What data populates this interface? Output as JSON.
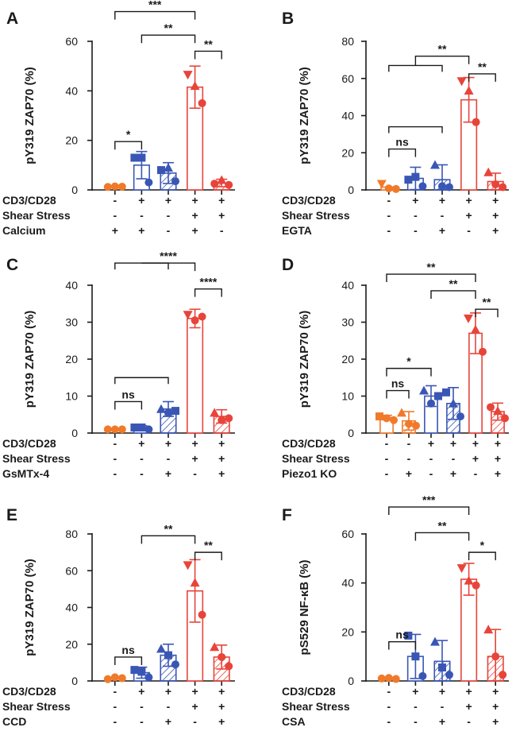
{
  "colors": {
    "control": "#f07a2a",
    "blue": "#3a56b5",
    "red": "#e8443a",
    "axis": "#1a1a1a"
  },
  "chart_data": [
    {
      "panel": "A",
      "type": "bar",
      "ylabel": "pY319 ZAP70 (%)",
      "ylim": [
        0,
        60
      ],
      "yticks": [
        0,
        20,
        40,
        60
      ],
      "rows": [
        {
          "label": "CD3/CD28",
          "symbols": [
            "-",
            "+",
            "+",
            "+",
            "+"
          ]
        },
        {
          "label": "Shear Stress",
          "symbols": [
            "-",
            "-",
            "-",
            "+",
            "+"
          ]
        },
        {
          "label": "Calcium",
          "symbols": [
            "+",
            "+",
            "-",
            "+",
            "-"
          ]
        }
      ],
      "bars": [
        {
          "color": "control",
          "fill": "none",
          "mean": 1.3,
          "sd": 0,
          "points": [
            {
              "y": 1.2,
              "m": "o"
            },
            {
              "y": 1.4,
              "m": "o"
            },
            {
              "y": 1.3,
              "m": "o"
            }
          ]
        },
        {
          "color": "blue",
          "fill": "open",
          "mean": 10,
          "sd": 5.5,
          "points": [
            {
              "y": 13,
              "m": "s"
            },
            {
              "y": 13,
              "m": "s"
            },
            {
              "y": 3,
              "m": "o"
            }
          ]
        },
        {
          "color": "blue",
          "fill": "hatch",
          "mean": 6.8,
          "sd": 4.2,
          "points": [
            {
              "y": 8,
              "m": "s"
            },
            {
              "y": 9,
              "m": "^"
            },
            {
              "y": 3.5,
              "m": "o"
            }
          ]
        },
        {
          "color": "red",
          "fill": "open",
          "mean": 41.5,
          "sd": 8.5,
          "points": [
            {
              "y": 46.5,
              "m": "v"
            },
            {
              "y": 42,
              "m": "^"
            },
            {
              "y": 35,
              "m": "o"
            }
          ]
        },
        {
          "color": "red",
          "fill": "hatch",
          "mean": 2.8,
          "sd": 1.5,
          "points": [
            {
              "y": 2.5,
              "m": "o"
            },
            {
              "y": 4,
              "m": "^"
            },
            {
              "y": 2,
              "m": "o"
            }
          ]
        }
      ],
      "sig": [
        {
          "a": 0,
          "b": 3,
          "y": 72,
          "text": "***"
        },
        {
          "a": 1,
          "b": 3,
          "y": 62.5,
          "text": "**"
        },
        {
          "a": 3,
          "b": 4,
          "y": 56,
          "text": "**"
        },
        {
          "a": 0,
          "b": 1,
          "y": 19.5,
          "text": "*"
        }
      ]
    },
    {
      "panel": "B",
      "type": "bar",
      "ylabel": "pY319 ZAP70 (%)",
      "ylim": [
        0,
        80
      ],
      "yticks": [
        0,
        20,
        40,
        60,
        80
      ],
      "rows": [
        {
          "label": "CD3/CD28",
          "symbols": [
            "-",
            "+",
            "+",
            "+",
            "+"
          ]
        },
        {
          "label": "Shear Stress",
          "symbols": [
            "-",
            "-",
            "-",
            "+",
            "+"
          ]
        },
        {
          "label": "EGTA",
          "symbols": [
            "-",
            "-",
            "+",
            "-",
            "+"
          ]
        }
      ],
      "bars": [
        {
          "color": "control",
          "fill": "open",
          "mean": 1.5,
          "sd": 0,
          "points": [
            {
              "y": 3.2,
              "m": "v"
            },
            {
              "y": 0.8,
              "m": "o"
            },
            {
              "y": 0.5,
              "m": "o"
            }
          ]
        },
        {
          "color": "blue",
          "fill": "open",
          "mean": 6.2,
          "sd": 6,
          "points": [
            {
              "y": 5.5,
              "m": "s"
            },
            {
              "y": 7,
              "m": "s"
            },
            {
              "y": 2,
              "m": "o"
            }
          ]
        },
        {
          "color": "blue",
          "fill": "hatch",
          "mean": 5.5,
          "sd": 8,
          "points": [
            {
              "y": 13.5,
              "m": "^"
            },
            {
              "y": 2,
              "m": "o"
            },
            {
              "y": 1.5,
              "m": "o"
            }
          ]
        },
        {
          "color": "red",
          "fill": "open",
          "mean": 48.5,
          "sd": 12,
          "points": [
            {
              "y": 58.5,
              "m": "v"
            },
            {
              "y": 53.5,
              "m": "^"
            },
            {
              "y": 36.5,
              "m": "o"
            }
          ]
        },
        {
          "color": "red",
          "fill": "hatch",
          "mean": 4.5,
          "sd": 4.5,
          "points": [
            {
              "y": 9.5,
              "m": "^"
            },
            {
              "y": 3,
              "m": "o"
            },
            {
              "y": 1.5,
              "m": "o"
            }
          ]
        }
      ],
      "sig": [
        {
          "a": 1,
          "b": 3,
          "y": 72,
          "text": "**",
          "groupBracket": [
            0,
            2
          ],
          "gy": 67
        },
        {
          "a": 3,
          "b": 4,
          "y": 62.5,
          "text": "**"
        },
        {
          "a": 0,
          "b": 1,
          "y": 27,
          "text": "",
          "groupBracket": [
            0,
            2
          ],
          "gy": 34
        },
        {
          "a": 0,
          "b": 1,
          "y": 22,
          "text": "ns"
        }
      ]
    },
    {
      "panel": "C",
      "type": "bar",
      "ylabel": "pY319 ZAP70 (%)",
      "ylim": [
        0,
        40
      ],
      "yticks": [
        0,
        10,
        20,
        30,
        40
      ],
      "rows": [
        {
          "label": "CD3/CD28",
          "symbols": [
            "-",
            "+",
            "+",
            "+",
            "+"
          ]
        },
        {
          "label": "Shear Stress",
          "symbols": [
            "-",
            "-",
            "-",
            "+",
            "+"
          ]
        },
        {
          "label": "GsMTx-4",
          "symbols": [
            "-",
            "-",
            "+",
            "-",
            "+"
          ]
        }
      ],
      "bars": [
        {
          "color": "control",
          "fill": "none",
          "mean": 1,
          "sd": 0,
          "points": [
            {
              "y": 1,
              "m": "o"
            },
            {
              "y": 1,
              "m": "o"
            },
            {
              "y": 1,
              "m": "o"
            }
          ]
        },
        {
          "color": "blue",
          "fill": "open",
          "mean": 1.5,
          "sd": 0.5,
          "points": [
            {
              "y": 1.5,
              "m": "s"
            },
            {
              "y": 1.5,
              "m": "s"
            },
            {
              "y": 1,
              "m": "o"
            }
          ]
        },
        {
          "color": "blue",
          "fill": "hatch",
          "mean": 6.5,
          "sd": 2,
          "points": [
            {
              "y": 6.5,
              "m": "^"
            },
            {
              "y": 5.5,
              "m": "o"
            },
            {
              "y": 6,
              "m": "s"
            }
          ]
        },
        {
          "color": "red",
          "fill": "open",
          "mean": 31,
          "sd": 2.5,
          "points": [
            {
              "y": 32,
              "m": "v"
            },
            {
              "y": 30.5,
              "m": "o"
            },
            {
              "y": 31.5,
              "m": "o"
            }
          ]
        },
        {
          "color": "red",
          "fill": "hatch",
          "mean": 4.5,
          "sd": 1.8,
          "points": [
            {
              "y": 5.5,
              "m": "^"
            },
            {
              "y": 3.5,
              "m": "o"
            },
            {
              "y": 4,
              "m": "o"
            }
          ]
        }
      ],
      "sig": [
        {
          "a": 1,
          "b": 3,
          "y": 46,
          "text": "****",
          "groupBracket": [
            0,
            2
          ],
          "gy": 46
        },
        {
          "a": 3,
          "b": 4,
          "y": 39,
          "text": "****"
        },
        {
          "a": 0,
          "b": 1,
          "y": 15,
          "text": "",
          "groupBracket": [
            0,
            2
          ],
          "gy": 15
        },
        {
          "a": 0,
          "b": 1,
          "y": 8.5,
          "text": "ns"
        }
      ]
    },
    {
      "panel": "D",
      "type": "bar",
      "ylabel": "pY319 ZAP70 (%)",
      "ylim": [
        0,
        40
      ],
      "yticks": [
        0,
        10,
        20,
        30,
        40
      ],
      "rows": [
        {
          "label": "CD3/CD28",
          "symbols": [
            "-",
            "-",
            "+",
            "+",
            "+",
            "+"
          ]
        },
        {
          "label": "Shear Stress",
          "symbols": [
            "-",
            "-",
            "-",
            "-",
            "+",
            "+"
          ]
        },
        {
          "label": "Piezo1 KO",
          "symbols": [
            "-",
            "+",
            "-",
            "+",
            "-",
            "+"
          ]
        }
      ],
      "bars": [
        {
          "color": "control",
          "fill": "open",
          "mean": 4.2,
          "sd": 0.6,
          "points": [
            {
              "y": 4.5,
              "m": "s"
            },
            {
              "y": 4,
              "m": "o"
            },
            {
              "y": 3.5,
              "m": "o"
            }
          ]
        },
        {
          "color": "control",
          "fill": "hatch",
          "mean": 3.3,
          "sd": 2.5,
          "points": [
            {
              "y": 5.5,
              "m": "^"
            },
            {
              "y": 2.5,
              "m": "o"
            },
            {
              "y": 2,
              "m": "o"
            }
          ]
        },
        {
          "color": "blue",
          "fill": "open",
          "mean": 10,
          "sd": 2.8,
          "points": [
            {
              "y": 11.5,
              "m": "^"
            },
            {
              "y": 8,
              "m": "o"
            },
            {
              "y": 10,
              "m": "s"
            }
          ]
        },
        {
          "color": "blue",
          "fill": "hatch",
          "mean": 8,
          "sd": 4.3,
          "points": [
            {
              "y": 11,
              "m": "s"
            },
            {
              "y": 8,
              "m": "^"
            },
            {
              "y": 4.5,
              "m": "o"
            }
          ]
        },
        {
          "color": "red",
          "fill": "open",
          "mean": 27,
          "sd": 5.5,
          "points": [
            {
              "y": 31,
              "m": "v"
            },
            {
              "y": 28,
              "m": "^"
            },
            {
              "y": 22,
              "m": "o"
            }
          ]
        },
        {
          "color": "red",
          "fill": "hatch",
          "mean": 5.8,
          "sd": 2.3,
          "points": [
            {
              "y": 7,
              "m": "o"
            },
            {
              "y": 6,
              "m": "^"
            },
            {
              "y": 4,
              "m": "o"
            }
          ]
        }
      ],
      "sig": [
        {
          "a": 0,
          "b": 4,
          "y": 43,
          "text": "**"
        },
        {
          "a": 2,
          "b": 4,
          "y": 38.5,
          "text": "**"
        },
        {
          "a": 4,
          "b": 5,
          "y": 33.5,
          "text": "**"
        },
        {
          "a": 0,
          "b": 2,
          "y": 17.5,
          "text": "*"
        },
        {
          "a": 0,
          "b": 1,
          "y": 11.5,
          "text": "ns"
        }
      ]
    },
    {
      "panel": "E",
      "type": "bar",
      "ylabel": "pY319 ZAP70 (%)",
      "ylim": [
        0,
        80
      ],
      "yticks": [
        0,
        20,
        40,
        60,
        80
      ],
      "rows": [
        {
          "label": "CD3/CD28",
          "symbols": [
            "-",
            "+",
            "+",
            "+",
            "+"
          ]
        },
        {
          "label": "Shear Stress",
          "symbols": [
            "-",
            "-",
            "-",
            "+",
            "+"
          ]
        },
        {
          "label": "CCD",
          "symbols": [
            "-",
            "-",
            "+",
            "-",
            "+"
          ]
        }
      ],
      "bars": [
        {
          "color": "control",
          "fill": "none",
          "mean": 1.5,
          "sd": 0,
          "points": [
            {
              "y": 1,
              "m": "o"
            },
            {
              "y": 2,
              "m": "o"
            },
            {
              "y": 1.5,
              "m": "o"
            }
          ]
        },
        {
          "color": "blue",
          "fill": "open",
          "mean": 4.5,
          "sd": 3,
          "points": [
            {
              "y": 6,
              "m": "s"
            },
            {
              "y": 5,
              "m": "s"
            },
            {
              "y": 2,
              "m": "o"
            }
          ]
        },
        {
          "color": "blue",
          "fill": "hatch",
          "mean": 14,
          "sd": 6,
          "points": [
            {
              "y": 17.5,
              "m": "^"
            },
            {
              "y": 14,
              "m": "s"
            },
            {
              "y": 9,
              "m": "o"
            }
          ]
        },
        {
          "color": "red",
          "fill": "open",
          "mean": 49,
          "sd": 17,
          "points": [
            {
              "y": 63,
              "m": "v"
            },
            {
              "y": 53.5,
              "m": "^"
            },
            {
              "y": 36,
              "m": "o"
            }
          ]
        },
        {
          "color": "red",
          "fill": "hatch",
          "mean": 13,
          "sd": 6.5,
          "points": [
            {
              "y": 18.5,
              "m": "^"
            },
            {
              "y": 13,
              "m": "o"
            },
            {
              "y": 8,
              "m": "o"
            }
          ]
        }
      ],
      "sig": [
        {
          "a": 1,
          "b": 3,
          "y": 79,
          "text": "**"
        },
        {
          "a": 3,
          "b": 4,
          "y": 70,
          "text": "**"
        },
        {
          "a": 0,
          "b": 1,
          "y": 13,
          "text": "ns"
        }
      ]
    },
    {
      "panel": "F",
      "type": "bar",
      "ylabel": "pS529 NF-κB (%)",
      "ylim": [
        0,
        60
      ],
      "yticks": [
        0,
        20,
        40,
        60
      ],
      "rows": [
        {
          "label": "CD3/CD28",
          "symbols": [
            "-",
            "+",
            "+",
            "+",
            "+"
          ]
        },
        {
          "label": "Shear Stress",
          "symbols": [
            "-",
            "-",
            "-",
            "+",
            "+"
          ]
        },
        {
          "label": "CSA",
          "symbols": [
            "-",
            "-",
            "+",
            "-",
            "+"
          ]
        }
      ],
      "bars": [
        {
          "color": "control",
          "fill": "none",
          "mean": 1,
          "sd": 0,
          "points": [
            {
              "y": 1,
              "m": "o"
            },
            {
              "y": 1.2,
              "m": "o"
            },
            {
              "y": 0.8,
              "m": "o"
            }
          ]
        },
        {
          "color": "blue",
          "fill": "open",
          "mean": 10,
          "sd": 9,
          "points": [
            {
              "y": 18.5,
              "m": "s"
            },
            {
              "y": 10,
              "m": "s"
            },
            {
              "y": 2,
              "m": "o"
            }
          ]
        },
        {
          "color": "blue",
          "fill": "hatch",
          "mean": 8,
          "sd": 8.5,
          "points": [
            {
              "y": 16,
              "m": "^"
            },
            {
              "y": 5.5,
              "m": "s"
            },
            {
              "y": 2.5,
              "m": "o"
            }
          ]
        },
        {
          "color": "red",
          "fill": "open",
          "mean": 41.5,
          "sd": 6.5,
          "points": [
            {
              "y": 46,
              "m": "v"
            },
            {
              "y": 41,
              "m": "^"
            },
            {
              "y": 39,
              "m": "o"
            }
          ]
        },
        {
          "color": "red",
          "fill": "hatch",
          "mean": 10,
          "sd": 11,
          "points": [
            {
              "y": 21,
              "m": "^"
            },
            {
              "y": 10,
              "m": "o"
            },
            {
              "y": 2.5,
              "m": "o"
            }
          ]
        }
      ],
      "sig": [
        {
          "a": 0,
          "b": 3,
          "y": 71,
          "text": "***"
        },
        {
          "a": 1,
          "b": 3,
          "y": 60.5,
          "text": "**"
        },
        {
          "a": 3,
          "b": 4,
          "y": 52.5,
          "text": "*"
        },
        {
          "a": 0,
          "b": 1,
          "y": 16,
          "text": "ns"
        }
      ]
    }
  ]
}
